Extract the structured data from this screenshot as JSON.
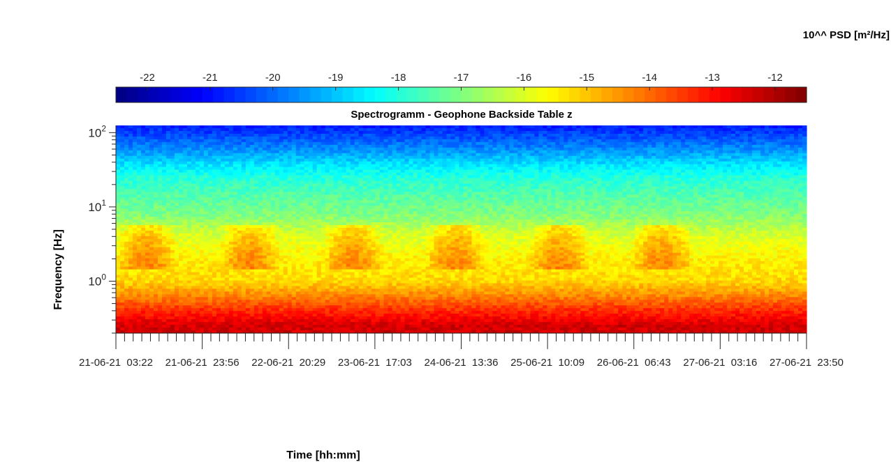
{
  "chart_data": {
    "type": "heatmap",
    "title": "Spectrogramm - Geophone Backside Table z",
    "xlabel": "Time [hh:mm]",
    "ylabel": "Frequency [Hz]",
    "colorbar_label": "10^^ PSD [m²/Hz]",
    "colormap": "jet",
    "y_scale": "log",
    "ylim": [
      0.2,
      125
    ],
    "y_ticks": [
      {
        "value": 1,
        "base": "10",
        "exp": "0"
      },
      {
        "value": 10,
        "base": "10",
        "exp": "1"
      },
      {
        "value": 100,
        "base": "10",
        "exp": "2"
      }
    ],
    "colorbar_range": [
      -22.5,
      -11.5
    ],
    "colorbar_ticks": [
      "-22",
      "-21",
      "-20",
      "-19",
      "-18",
      "-17",
      "-16",
      "-15",
      "-14",
      "-13",
      "-12"
    ],
    "x_tick_labels": [
      "21-06-21  03:22",
      "21-06-21  23:56",
      "22-06-21  20:29",
      "23-06-21  17:03",
      "24-06-21  13:36",
      "25-06-21  10:09",
      "26-06-21  06:43",
      "27-06-21  03:16",
      "27-06-21  23:50"
    ],
    "daily_activity_bands_hz": [
      1.5,
      5.5
    ],
    "log10_psd_profile_by_frequency": [
      {
        "freq_hz": 120,
        "log10_psd": -20.8
      },
      {
        "freq_hz": 90,
        "log10_psd": -20.3
      },
      {
        "freq_hz": 60,
        "log10_psd": -19.6
      },
      {
        "freq_hz": 40,
        "log10_psd": -18.8
      },
      {
        "freq_hz": 25,
        "log10_psd": -18.0
      },
      {
        "freq_hz": 15,
        "log10_psd": -17.5
      },
      {
        "freq_hz": 8,
        "log10_psd": -17.0
      },
      {
        "freq_hz": 4,
        "log10_psd": -16.0
      },
      {
        "freq_hz": 2,
        "log10_psd": -15.5
      },
      {
        "freq_hz": 1,
        "log10_psd": -15.2
      },
      {
        "freq_hz": 0.6,
        "log10_psd": -14.2
      },
      {
        "freq_hz": 0.4,
        "log10_psd": -13.3
      },
      {
        "freq_hz": 0.25,
        "log10_psd": -12.4
      }
    ]
  }
}
